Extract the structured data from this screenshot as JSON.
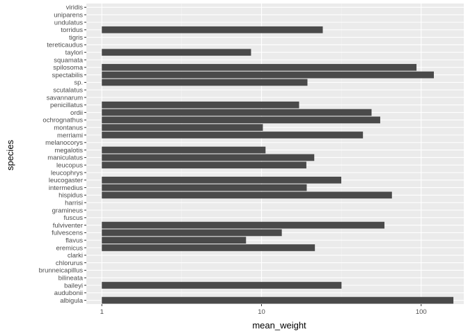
{
  "chart_data": {
    "type": "bar",
    "orientation": "horizontal",
    "xlabel": "mean_weight",
    "ylabel": "species",
    "x_scale": "log10",
    "xlim": [
      0.8,
      185
    ],
    "x_ticks": [
      1,
      10,
      100
    ],
    "x_tick_labels": [
      "1",
      "10",
      "100"
    ],
    "grid": true,
    "bar_color": "#4a4a4a",
    "panel_color": "#ebebeb",
    "categories": [
      "albigula",
      "audubonii",
      "baileyi",
      "bilineata",
      "brunneicapillus",
      "chlorurus",
      "clarki",
      "eremicus",
      "flavus",
      "fulvescens",
      "fulviventer",
      "fuscus",
      "gramineus",
      "harrisi",
      "hispidus",
      "intermedius",
      "leucogaster",
      "leucophrys",
      "leucopus",
      "maniculatus",
      "megalotis",
      "melanocorys",
      "merriami",
      "montanus",
      "ochrognathus",
      "ordii",
      "penicillatus",
      "savannarum",
      "scutalatus",
      "sp.",
      "spectabilis",
      "spilosoma",
      "squamata",
      "taylori",
      "tereticaudus",
      "tigris",
      "torridus",
      "undulatus",
      "uniparens",
      "viridis"
    ],
    "values": [
      159.2,
      null,
      31.7,
      null,
      null,
      null,
      null,
      21.6,
      8.0,
      13.4,
      58.9,
      null,
      null,
      null,
      65.6,
      19.2,
      31.6,
      null,
      19.1,
      21.4,
      10.6,
      null,
      43.2,
      10.2,
      55.4,
      48.9,
      17.2,
      null,
      null,
      19.4,
      120.1,
      93.5,
      null,
      8.6,
      null,
      null,
      24.2,
      null,
      null,
      null
    ]
  }
}
